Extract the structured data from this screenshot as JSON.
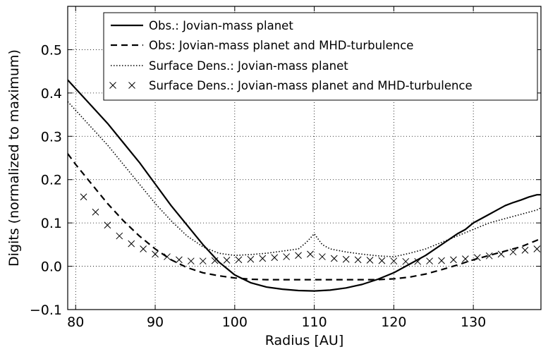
{
  "chart_data": {
    "type": "line",
    "title": "",
    "xlabel": "Radius [AU]",
    "ylabel": "Digits (normalized to maximum)",
    "xlim": [
      79,
      138.5
    ],
    "ylim": [
      -0.1,
      0.6
    ],
    "xticks": [
      80,
      90,
      100,
      110,
      120,
      130
    ],
    "yticks": [
      -0.1,
      0.0,
      0.1,
      0.2,
      0.3,
      0.4,
      0.5
    ],
    "xtick_labels": [
      "80",
      "90",
      "100",
      "110",
      "120",
      "130"
    ],
    "ytick_labels": [
      "−0.1",
      "0.0",
      "0.1",
      "0.2",
      "0.3",
      "0.4",
      "0.5"
    ],
    "grid": true,
    "legend_position": "top-right",
    "series": [
      {
        "name": "Obs.: Jovian-mass planet",
        "style": "solid",
        "color": "#000000",
        "x": [
          79,
          80,
          82,
          84,
          86,
          88,
          90,
          92,
          94,
          96,
          98,
          100,
          102,
          104,
          106,
          108,
          110,
          112,
          114,
          116,
          118,
          120,
          122,
          124,
          126,
          128,
          129,
          130,
          131,
          132,
          133,
          134,
          135,
          136,
          137,
          138,
          138.5
        ],
        "y": [
          0.43,
          0.41,
          0.37,
          0.33,
          0.285,
          0.24,
          0.19,
          0.14,
          0.095,
          0.05,
          0.01,
          -0.02,
          -0.038,
          -0.048,
          -0.053,
          -0.056,
          -0.057,
          -0.055,
          -0.05,
          -0.042,
          -0.03,
          -0.015,
          0.005,
          0.025,
          0.05,
          0.075,
          0.085,
          0.1,
          0.11,
          0.12,
          0.13,
          0.14,
          0.147,
          0.153,
          0.16,
          0.165,
          0.165
        ]
      },
      {
        "name": "Obs: Jovian-mass planet and MHD-turbulence",
        "style": "dashed",
        "color": "#000000",
        "x": [
          79,
          80,
          82,
          84,
          86,
          88,
          90,
          92,
          94,
          96,
          98,
          100,
          102,
          104,
          106,
          108,
          110,
          112,
          114,
          116,
          118,
          120,
          122,
          124,
          126,
          128,
          130,
          132,
          134,
          136,
          138,
          138.5
        ],
        "y": [
          0.26,
          0.235,
          0.19,
          0.145,
          0.105,
          0.07,
          0.04,
          0.015,
          -0.003,
          -0.015,
          -0.022,
          -0.027,
          -0.03,
          -0.031,
          -0.031,
          -0.031,
          -0.031,
          -0.031,
          -0.031,
          -0.031,
          -0.031,
          -0.029,
          -0.025,
          -0.018,
          -0.008,
          0.003,
          0.015,
          0.025,
          0.035,
          0.045,
          0.06,
          0.065
        ]
      },
      {
        "name": "Surface Dens.: Jovian-mass planet",
        "style": "dotted",
        "color": "#000000",
        "x": [
          79,
          80,
          82,
          84,
          86,
          88,
          90,
          92,
          94,
          96,
          98,
          100,
          102,
          104,
          106,
          108,
          109,
          110,
          111,
          112,
          114,
          116,
          118,
          120,
          122,
          124,
          126,
          128,
          130,
          132,
          134,
          136,
          138,
          138.5
        ],
        "y": [
          0.38,
          0.36,
          0.32,
          0.28,
          0.235,
          0.19,
          0.145,
          0.105,
          0.07,
          0.045,
          0.03,
          0.025,
          0.027,
          0.03,
          0.035,
          0.04,
          0.055,
          0.075,
          0.05,
          0.04,
          0.033,
          0.028,
          0.024,
          0.022,
          0.03,
          0.04,
          0.055,
          0.07,
          0.085,
          0.1,
          0.11,
          0.12,
          0.13,
          0.135
        ]
      },
      {
        "name": "Surface Dens.: Jovian-mass planet and MHD-turbulence",
        "style": "x-markers",
        "color": "#000000",
        "x": [
          81,
          82.5,
          84,
          85.5,
          87,
          88.5,
          90,
          91.5,
          93,
          94.5,
          96,
          97.5,
          99,
          100.5,
          102,
          103.5,
          105,
          106.5,
          108,
          109.5,
          111,
          112.5,
          114,
          115.5,
          117,
          118.5,
          120,
          121.5,
          123,
          124.5,
          126,
          127.5,
          129,
          130.5,
          132,
          133.5,
          135,
          136.5,
          138
        ],
        "y": [
          0.16,
          0.125,
          0.095,
          0.07,
          0.052,
          0.04,
          0.028,
          0.022,
          0.015,
          0.012,
          0.012,
          0.013,
          0.014,
          0.015,
          0.016,
          0.018,
          0.02,
          0.022,
          0.025,
          0.028,
          0.022,
          0.018,
          0.016,
          0.015,
          0.014,
          0.013,
          0.012,
          0.011,
          0.011,
          0.012,
          0.013,
          0.015,
          0.017,
          0.02,
          0.024,
          0.028,
          0.033,
          0.037,
          0.04
        ]
      }
    ]
  }
}
